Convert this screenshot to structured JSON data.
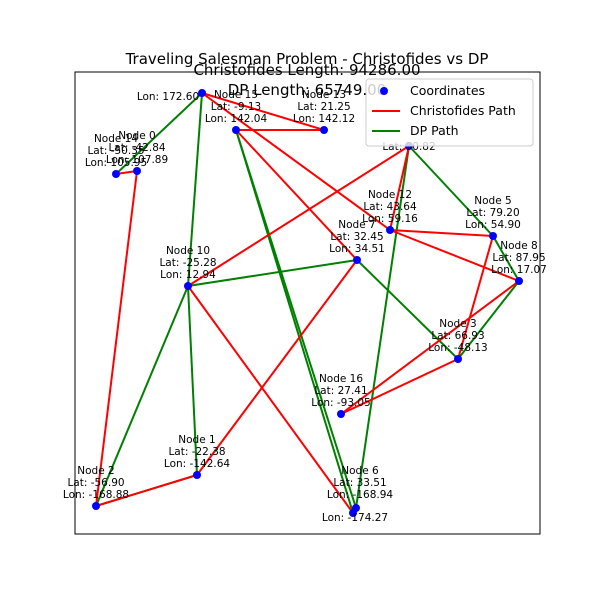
{
  "chart_data": {
    "type": "scatter",
    "title": "Traveling Salesman Problem - Christofides vs DP",
    "subtitles": [
      "Christofides Length: 94286.00",
      "DP Length: 65749.00"
    ],
    "xlabel": "",
    "ylabel": "",
    "axes_ticks": "none",
    "grid": false,
    "legend": {
      "placement": "top-right",
      "entries": [
        {
          "label": "Coordinates",
          "marker": "point",
          "color": "#0000ff"
        },
        {
          "label": "Christofides Path",
          "marker": "line",
          "color": "#ff0000"
        },
        {
          "label": "DP Path",
          "marker": "line",
          "color": "#008000"
        }
      ]
    },
    "nodes": [
      {
        "label": "Node 0",
        "lat_text": "Lat: -42.84",
        "lon_text": "Lon: 107.89",
        "lat": -42.84,
        "lon": 107.89
      },
      {
        "label": "Node 1",
        "lat_text": "Lat: -22.38",
        "lon_text": "Lon: -142.64",
        "lat": -22.38,
        "lon": -142.64
      },
      {
        "label": "Node 2",
        "lat_text": "Lat: -56.90",
        "lon_text": "Lon: -168.88",
        "lat": -56.9,
        "lon": -168.88
      },
      {
        "label": "Node 3",
        "lat_text": "Lat: 66.93",
        "lon_text": "Lon: -48.13",
        "lat": 66.93,
        "lon": -48.13
      },
      {
        "label": "Node 5",
        "lat_text": "Lat: 79.20",
        "lon_text": "Lon: 54.90",
        "lat": 79.2,
        "lon": 54.9
      },
      {
        "label": "Node 6",
        "lat_text": "Lat: 33.51",
        "lon_text": "Lon: -168.94",
        "lat": 33.51,
        "lon": -168.94
      },
      {
        "label": "Node 7",
        "lat_text": "Lat: 32.45",
        "lon_text": "Lon: 34.51",
        "lat": 32.45,
        "lon": 34.51
      },
      {
        "label": "Node 8",
        "lat_text": "Lat: 87.95",
        "lon_text": "Lon: 17.07",
        "lat": 87.95,
        "lon": 17.07
      },
      {
        "label": "Node 10",
        "lat_text": "Lat: -25.28",
        "lon_text": "Lon: 12.94",
        "lat": -25.28,
        "lon": 12.94
      },
      {
        "label": "Node 12",
        "lat_text": "Lat: 43.64",
        "lon_text": "Lon: 59.16",
        "lat": 43.64,
        "lon": 59.16
      },
      {
        "label": "Node 13",
        "lat_text": "Lat: 21.25",
        "lon_text": "Lon: 142.12",
        "lat": 21.25,
        "lon": 142.12
      },
      {
        "label": "Node 14",
        "lat_text": "Lat: -50.35",
        "lon_text": "Lon: 105.95",
        "lat": -50.35,
        "lon": 105.95
      },
      {
        "label": "Node 15",
        "lat_text": "Lat: -9.13",
        "lon_text": "Lon: 142.04",
        "lat": -9.13,
        "lon": 142.04
      },
      {
        "label": "Node 16",
        "lat_text": "Lat: 27.41",
        "lon_text": "Lon: -93.05",
        "lat": 27.41,
        "lon": -93.05
      },
      {
        "label": "",
        "lat_text": "Lat: 50.82",
        "lon_text": "",
        "lat": 50.82,
        "lon": null
      },
      {
        "label": "",
        "lat_text": "",
        "lon_text": "Lon: 172.60",
        "lat": null,
        "lon": 172.6
      },
      {
        "label": "",
        "lat_text": "",
        "lon_text": "Lon: -174.27",
        "lat": null,
        "lon": -174.27
      }
    ],
    "christofides_path": [
      11,
      0,
      2,
      1,
      6,
      12,
      10,
      15,
      9,
      4,
      3,
      13,
      7,
      9,
      14,
      8,
      16,
      5
    ],
    "dp_path": [
      11,
      15,
      8,
      2,
      1,
      8,
      6,
      3,
      7,
      4,
      14,
      5,
      12,
      16
    ]
  }
}
